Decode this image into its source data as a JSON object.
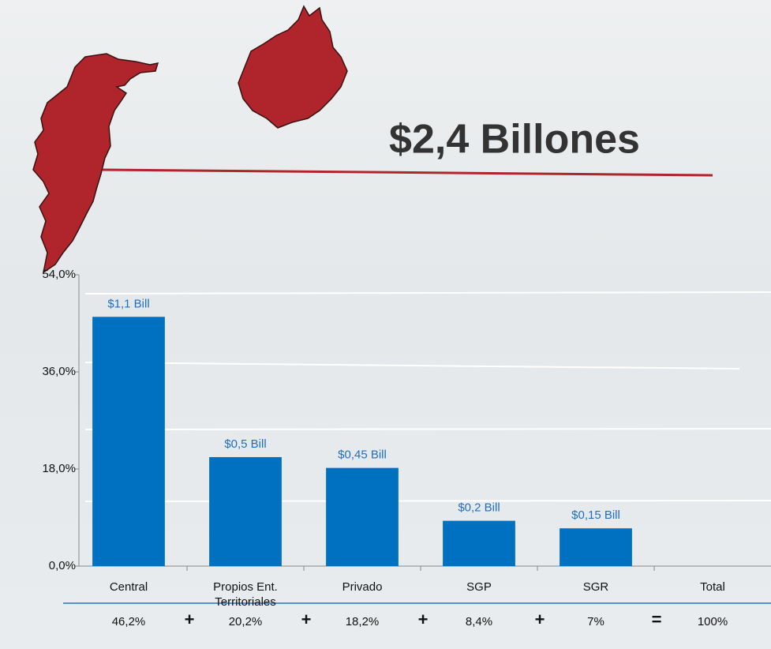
{
  "chart_data": {
    "type": "bar",
    "title": "$2,4 Billones",
    "categories": [
      "Central",
      "Propios Ent. Territoriales",
      "Privado",
      "SGP",
      "SGR",
      "Total"
    ],
    "values": [
      46.2,
      20.2,
      18.2,
      8.4,
      7,
      null
    ],
    "value_labels": [
      "46,2%",
      "20,2%",
      "18,2%",
      "8,4%",
      "7%",
      "100%"
    ],
    "amount_labels": [
      "$1,1 Bill",
      "$0,5 Bill",
      "$0,45 Bill",
      "$0,2 Bill",
      "$0,15 Bill",
      null
    ],
    "operators": [
      "+",
      "+",
      "+",
      "+",
      "="
    ],
    "color": "#0070c0",
    "ylim": [
      0,
      54
    ],
    "yticks": [
      {
        "value": 0,
        "label": "0,0%"
      },
      {
        "value": 18,
        "label": "18,0%"
      },
      {
        "value": 36,
        "label": "36,0%"
      },
      {
        "value": 54,
        "label": "54,0%"
      }
    ],
    "grid": false
  }
}
